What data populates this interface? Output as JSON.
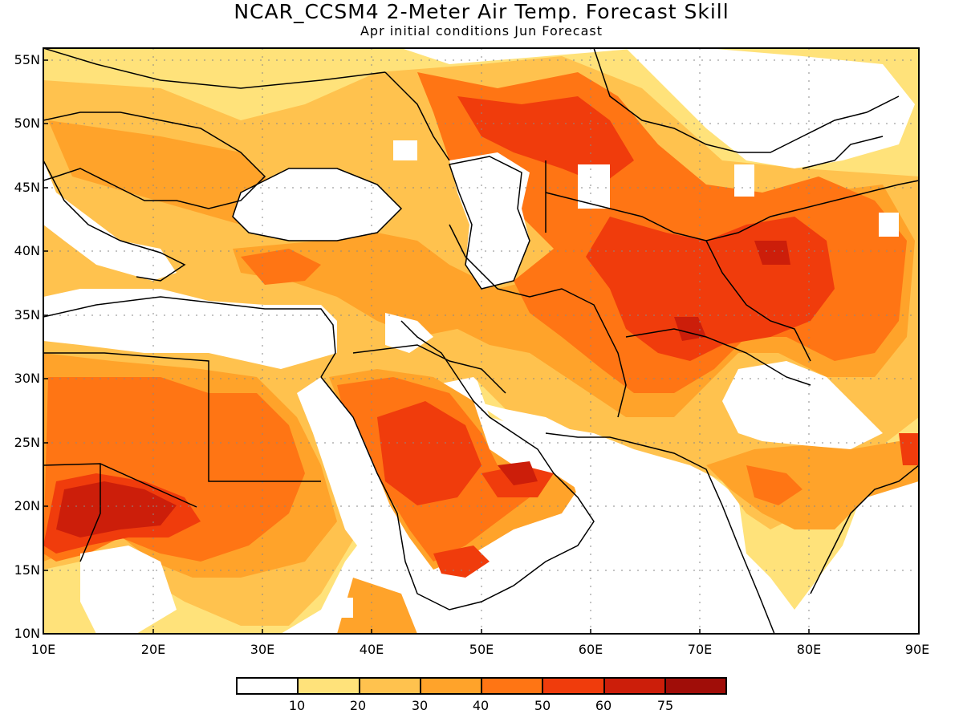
{
  "title": "NCAR_CCSM4 2-Meter Air Temp. Forecast Skill",
  "subtitle": "Apr initial conditions  Jun Forecast",
  "map": {
    "lon_range": [
      10,
      90
    ],
    "lat_range": [
      10,
      56
    ],
    "lon_labels": [
      "10E",
      "20E",
      "30E",
      "40E",
      "50E",
      "60E",
      "70E",
      "80E",
      "90E"
    ],
    "lat_labels": [
      "55N",
      "50N",
      "45N",
      "40N",
      "35N",
      "30N",
      "25N",
      "20N",
      "15N",
      "10N"
    ],
    "gridlines": "dotted"
  },
  "colorbar": {
    "colors": [
      "#ffffff",
      "#ffe27a",
      "#ffc24e",
      "#ffa32a",
      "#ff7514",
      "#f03c0c",
      "#cc1e0a",
      "#a00d08"
    ],
    "labels": [
      "10",
      "20",
      "30",
      "40",
      "50",
      "60",
      "75"
    ]
  }
}
